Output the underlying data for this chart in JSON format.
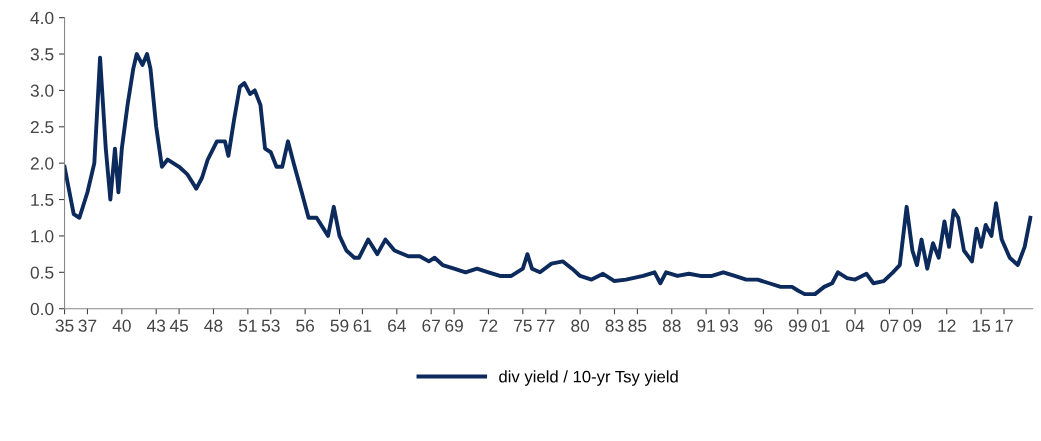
{
  "chart_data": {
    "type": "line",
    "x": [
      1935.0,
      1935.8,
      1936.3,
      1937.0,
      1937.6,
      1938.1,
      1938.6,
      1939.0,
      1939.4,
      1939.7,
      1940.0,
      1940.5,
      1941.0,
      1941.3,
      1941.8,
      1942.2,
      1942.5,
      1943.0,
      1943.5,
      1944.0,
      1945.0,
      1945.7,
      1946.5,
      1947.0,
      1947.5,
      1948.3,
      1949.0,
      1949.3,
      1949.8,
      1950.3,
      1950.7,
      1951.2,
      1951.6,
      1952.1,
      1952.5,
      1953.0,
      1953.5,
      1954.0,
      1954.5,
      1955.0,
      1955.7,
      1956.3,
      1957.0,
      1957.6,
      1958.0,
      1958.5,
      1959.0,
      1959.6,
      1960.3,
      1960.7,
      1961.5,
      1962.3,
      1963.0,
      1963.8,
      1965.0,
      1966.0,
      1966.8,
      1967.3,
      1968.0,
      1969.0,
      1970.0,
      1971.0,
      1972.0,
      1973.0,
      1974.0,
      1975.0,
      1975.4,
      1975.8,
      1976.5,
      1977.5,
      1978.5,
      1979.3,
      1980.0,
      1981.0,
      1982.0,
      1983.0,
      1984.0,
      1985.5,
      1986.5,
      1987.0,
      1987.5,
      1988.5,
      1989.5,
      1990.5,
      1991.5,
      1992.5,
      1993.5,
      1994.5,
      1995.5,
      1996.5,
      1997.5,
      1998.5,
      1999.0,
      1999.6,
      2000.5,
      2001.3,
      2002.0,
      2002.5,
      2003.3,
      2004.0,
      2005.0,
      2005.6,
      2006.5,
      2007.3,
      2007.9,
      2008.5,
      2009.0,
      2009.4,
      2009.8,
      2010.3,
      2010.8,
      2011.3,
      2011.8,
      2012.2,
      2012.6,
      2013.0,
      2013.5,
      2014.2,
      2014.6,
      2015.0,
      2015.4,
      2015.9,
      2016.3,
      2016.8,
      2017.5,
      2018.2,
      2018.8,
      2019.3
    ],
    "series": [
      {
        "name": "div yield / 10-yr Tsy yield",
        "color": "#0d2a5c",
        "values": [
          1.95,
          1.3,
          1.25,
          1.6,
          2.0,
          3.45,
          2.2,
          1.5,
          2.2,
          1.6,
          2.2,
          2.8,
          3.3,
          3.5,
          3.35,
          3.5,
          3.3,
          2.5,
          1.95,
          2.05,
          1.95,
          1.85,
          1.65,
          1.8,
          2.05,
          2.3,
          2.3,
          2.1,
          2.6,
          3.05,
          3.1,
          2.95,
          3.0,
          2.8,
          2.2,
          2.15,
          1.95,
          1.95,
          2.3,
          2.0,
          1.6,
          1.25,
          1.25,
          1.1,
          1.0,
          1.4,
          1.0,
          0.8,
          0.7,
          0.7,
          0.95,
          0.75,
          0.95,
          0.8,
          0.72,
          0.72,
          0.65,
          0.7,
          0.6,
          0.55,
          0.5,
          0.55,
          0.5,
          0.45,
          0.45,
          0.55,
          0.75,
          0.55,
          0.5,
          0.62,
          0.65,
          0.55,
          0.45,
          0.4,
          0.48,
          0.38,
          0.4,
          0.45,
          0.5,
          0.35,
          0.5,
          0.45,
          0.48,
          0.45,
          0.45,
          0.5,
          0.45,
          0.4,
          0.4,
          0.35,
          0.3,
          0.3,
          0.25,
          0.2,
          0.2,
          0.3,
          0.35,
          0.5,
          0.42,
          0.4,
          0.48,
          0.35,
          0.38,
          0.5,
          0.6,
          1.4,
          0.8,
          0.6,
          0.95,
          0.55,
          0.9,
          0.7,
          1.2,
          0.85,
          1.35,
          1.25,
          0.8,
          0.65,
          1.1,
          0.85,
          1.15,
          1.0,
          1.45,
          0.95,
          0.7,
          0.6,
          0.85,
          1.25
        ]
      }
    ],
    "xlim": [
      1935,
      2019.5
    ],
    "xticks": [
      {
        "value": 1935,
        "label": "35"
      },
      {
        "value": 1937,
        "label": "37"
      },
      {
        "value": 1940,
        "label": "40"
      },
      {
        "value": 1943,
        "label": "43"
      },
      {
        "value": 1945,
        "label": "45"
      },
      {
        "value": 1948,
        "label": "48"
      },
      {
        "value": 1951,
        "label": "51"
      },
      {
        "value": 1953,
        "label": "53"
      },
      {
        "value": 1956,
        "label": "56"
      },
      {
        "value": 1959,
        "label": "59"
      },
      {
        "value": 1961,
        "label": "61"
      },
      {
        "value": 1964,
        "label": "64"
      },
      {
        "value": 1967,
        "label": "67"
      },
      {
        "value": 1969,
        "label": "69"
      },
      {
        "value": 1972,
        "label": "72"
      },
      {
        "value": 1975,
        "label": "75"
      },
      {
        "value": 1977,
        "label": "77"
      },
      {
        "value": 1980,
        "label": "80"
      },
      {
        "value": 1983,
        "label": "83"
      },
      {
        "value": 1985,
        "label": "85"
      },
      {
        "value": 1988,
        "label": "88"
      },
      {
        "value": 1991,
        "label": "91"
      },
      {
        "value": 1993,
        "label": "93"
      },
      {
        "value": 1996,
        "label": "96"
      },
      {
        "value": 1999,
        "label": "99"
      },
      {
        "value": 2001,
        "label": "01"
      },
      {
        "value": 2004,
        "label": "04"
      },
      {
        "value": 2007,
        "label": "07"
      },
      {
        "value": 2009,
        "label": "09"
      },
      {
        "value": 2012,
        "label": "12"
      },
      {
        "value": 2015,
        "label": "15"
      },
      {
        "value": 2017,
        "label": "17"
      }
    ],
    "ylim": [
      0,
      4
    ],
    "yticks": [
      {
        "value": 0,
        "label": "0.0"
      },
      {
        "value": 0.5,
        "label": "0.5"
      },
      {
        "value": 1.0,
        "label": "1.0"
      },
      {
        "value": 1.5,
        "label": "1.5"
      },
      {
        "value": 2.0,
        "label": "2.0"
      },
      {
        "value": 2.5,
        "label": "2.5"
      },
      {
        "value": 3.0,
        "label": "3.0"
      },
      {
        "value": 3.5,
        "label": "3.5"
      },
      {
        "value": 4.0,
        "label": "4.0"
      }
    ],
    "grid": false,
    "legend": "bottom",
    "marker": "none",
    "line_style": "solid"
  }
}
